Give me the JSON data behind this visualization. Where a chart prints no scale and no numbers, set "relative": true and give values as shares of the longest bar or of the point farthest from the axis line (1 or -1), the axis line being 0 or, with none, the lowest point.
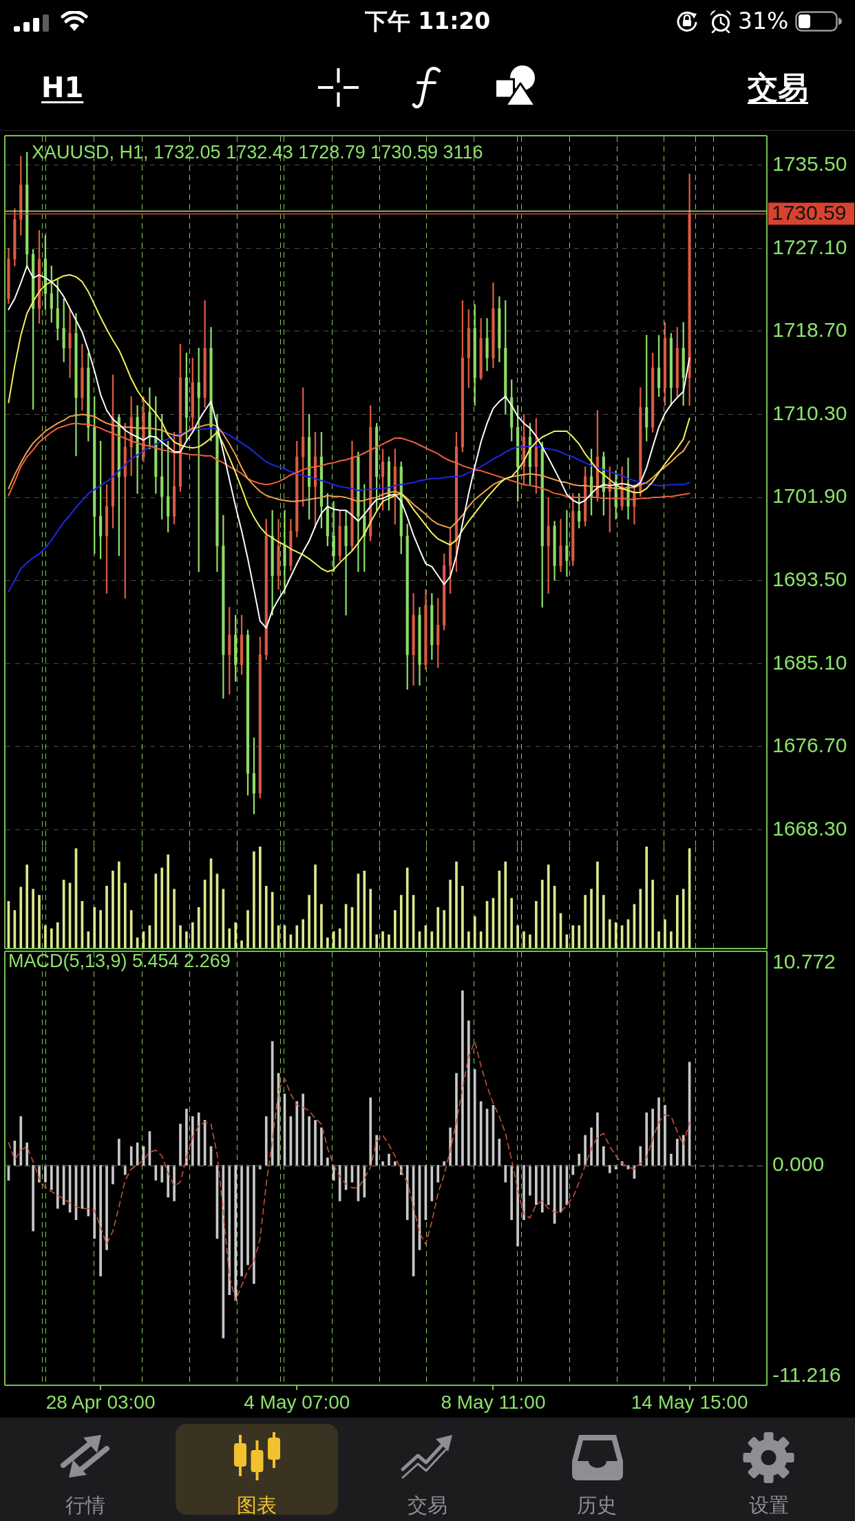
{
  "chart_data": [
    {
      "type": "other",
      "annotations": [
        "下午 11:20",
        "31%",
        "H1",
        "交易"
      ]
    },
    {
      "type": "candlestick",
      "title": "XAUUSD, H1, 1732.05 1732.43 1728.79 1730.59 3116",
      "categories": [
        null,
        null,
        null,
        null,
        null,
        null,
        null,
        null,
        null,
        null,
        null,
        null,
        null,
        null,
        null,
        null,
        null,
        null,
        null,
        null,
        null,
        null,
        null,
        null,
        null,
        null,
        null,
        null,
        null,
        null,
        null,
        null,
        null,
        null,
        null,
        null,
        null,
        null,
        null,
        null,
        null,
        null,
        null,
        null,
        null,
        null,
        null,
        null,
        null,
        null,
        null,
        null,
        null,
        null,
        null,
        null,
        null,
        null,
        null,
        null,
        null,
        null,
        null,
        null,
        null,
        null,
        null,
        null,
        null,
        null,
        null,
        null,
        null,
        null,
        null,
        null,
        null,
        null,
        null,
        null,
        null,
        null,
        null,
        null,
        null,
        null,
        null,
        null,
        null,
        null,
        null,
        null,
        null,
        null,
        null,
        null,
        null,
        null,
        null,
        null,
        null,
        null,
        null,
        null,
        null,
        null,
        null,
        null,
        null,
        null,
        null,
        null,
        null,
        null,
        null,
        null,
        null,
        null,
        null,
        null,
        null,
        null,
        null,
        null
      ],
      "ohlc": [
        [
          1722.0,
          1727.1,
          1721.5,
          1726.0
        ],
        [
          1726.0,
          1731.1,
          1725.3,
          1730.0
        ],
        [
          1730.0,
          1736.4,
          1728.4,
          1733.5
        ],
        [
          1733.5,
          1736.8,
          1725.3,
          1726.5
        ],
        [
          1726.5,
          1727.0,
          1710.8,
          1721.0
        ],
        [
          1721.0,
          1728.9,
          1719.5,
          1726.0
        ],
        [
          1726.0,
          1728.4,
          1720.9,
          1722.5
        ],
        [
          1722.5,
          1725.3,
          1719.6,
          1721.0
        ],
        [
          1721.0,
          1724.0,
          1717.8,
          1719.0
        ],
        [
          1719.0,
          1722.0,
          1715.6,
          1717.0
        ],
        [
          1717.0,
          1721.0,
          1714.0,
          1718.5
        ],
        [
          1718.5,
          1720.5,
          1706.1,
          1712.0
        ],
        [
          1712.0,
          1717.4,
          1710.7,
          1715.0
        ],
        [
          1715.0,
          1716.5,
          1707.6,
          1709.0
        ],
        [
          1709.0,
          1712.1,
          1696.2,
          1700.0
        ],
        [
          1700.0,
          1707.6,
          1695.7,
          1698.0
        ],
        [
          1698.0,
          1703.2,
          1692.2,
          1701.0
        ],
        [
          1701.0,
          1714.3,
          1698.8,
          1710.0
        ],
        [
          1710.0,
          1710.3,
          1696.0,
          1704.0
        ],
        [
          1704.0,
          1709.4,
          1691.7,
          1707.0
        ],
        [
          1707.0,
          1712.1,
          1704.1,
          1710.0
        ],
        [
          1710.0,
          1711.2,
          1702.3,
          1706.0
        ],
        [
          1706.0,
          1712.1,
          1705.5,
          1710.5
        ],
        [
          1710.5,
          1713.0,
          1706.8,
          1708.0
        ],
        [
          1708.0,
          1712.1,
          1702.3,
          1704.0
        ],
        [
          1704.0,
          1710.3,
          1699.7,
          1702.0
        ],
        [
          1702.0,
          1707.6,
          1698.4,
          1700.0
        ],
        [
          1700.0,
          1708.5,
          1699.2,
          1703.0
        ],
        [
          1703.0,
          1717.4,
          1702.5,
          1714.0
        ],
        [
          1714.0,
          1716.5,
          1707.6,
          1710.0
        ],
        [
          1710.0,
          1716.0,
          1708.5,
          1713.5
        ],
        [
          1713.5,
          1717.0,
          1694.4,
          1712.0
        ],
        [
          1712.0,
          1721.8,
          1711.0,
          1717.0
        ],
        [
          1717.0,
          1719.1,
          1707.6,
          1709.0
        ],
        [
          1709.0,
          1710.3,
          1694.4,
          1697.0
        ],
        [
          1697.0,
          1700.1,
          1681.6,
          1686.0
        ],
        [
          1686.0,
          1690.8,
          1682.0,
          1688.0
        ],
        [
          1688.0,
          1690.0,
          1683.3,
          1685.0
        ],
        [
          1685.0,
          1690.0,
          1684.0,
          1688.0
        ],
        [
          1688.0,
          1688.5,
          1671.8,
          1674.0
        ],
        [
          1674.0,
          1677.6,
          1669.9,
          1672.0
        ],
        [
          1672.0,
          1687.8,
          1671.5,
          1686.0
        ],
        [
          1686.0,
          1699.7,
          1685.5,
          1698.0
        ],
        [
          1698.0,
          1700.6,
          1690.0,
          1694.0
        ],
        [
          1694.0,
          1699.7,
          1692.6,
          1697.0
        ],
        [
          1697.0,
          1700.6,
          1692.2,
          1695.0
        ],
        [
          1695.0,
          1699.7,
          1694.5,
          1698.5
        ],
        [
          1698.5,
          1707.6,
          1697.9,
          1706.0
        ],
        [
          1706.0,
          1713.0,
          1701.0,
          1708.0
        ],
        [
          1708.0,
          1710.3,
          1699.7,
          1703.0
        ],
        [
          1703.0,
          1708.5,
          1698.8,
          1706.0
        ],
        [
          1706.0,
          1708.5,
          1698.8,
          1701.0
        ],
        [
          1701.0,
          1702.3,
          1697.0,
          1698.0
        ],
        [
          1698.0,
          1701.5,
          1694.4,
          1696.0
        ],
        [
          1696.0,
          1700.6,
          1695.5,
          1699.0
        ],
        [
          1699.0,
          1700.6,
          1690.0,
          1697.0
        ],
        [
          1697.0,
          1707.6,
          1696.5,
          1706.0
        ],
        [
          1706.0,
          1706.5,
          1694.4,
          1700.0
        ],
        [
          1700.0,
          1703.2,
          1694.4,
          1698.0
        ],
        [
          1698.0,
          1711.2,
          1697.5,
          1709.0
        ],
        [
          1709.0,
          1709.4,
          1700.6,
          1704.0
        ],
        [
          1704.0,
          1706.8,
          1700.6,
          1705.5
        ],
        [
          1705.5,
          1706.0,
          1700.6,
          1702.0
        ],
        [
          1702.0,
          1706.8,
          1699.2,
          1705.0
        ],
        [
          1705.0,
          1705.5,
          1696.2,
          1698.0
        ],
        [
          1698.0,
          1699.2,
          1682.5,
          1686.0
        ],
        [
          1686.0,
          1692.2,
          1682.9,
          1690.0
        ],
        [
          1690.0,
          1690.8,
          1682.9,
          1685.0
        ],
        [
          1685.0,
          1692.6,
          1684.5,
          1691.0
        ],
        [
          1691.0,
          1692.2,
          1685.5,
          1687.0
        ],
        [
          1687.0,
          1691.7,
          1684.7,
          1689.0
        ],
        [
          1689.0,
          1696.2,
          1688.5,
          1695.0
        ],
        [
          1695.0,
          1698.8,
          1692.2,
          1697.5
        ],
        [
          1697.5,
          1708.5,
          1694.4,
          1707.0
        ],
        [
          1707.0,
          1721.8,
          1706.5,
          1716.0
        ],
        [
          1716.0,
          1720.9,
          1713.0,
          1719.0
        ],
        [
          1719.0,
          1721.4,
          1711.2,
          1714.0
        ],
        [
          1714.0,
          1720.0,
          1713.8,
          1718.0
        ],
        [
          1718.0,
          1720.0,
          1714.7,
          1716.0
        ],
        [
          1716.0,
          1723.6,
          1715.0,
          1721.0
        ],
        [
          1721.0,
          1722.2,
          1715.6,
          1717.0
        ],
        [
          1717.0,
          1721.8,
          1710.3,
          1712.0
        ],
        [
          1712.0,
          1713.8,
          1707.6,
          1709.0
        ],
        [
          1709.0,
          1711.2,
          1701.5,
          1705.0
        ],
        [
          1705.0,
          1710.3,
          1703.2,
          1708.0
        ],
        [
          1708.0,
          1709.4,
          1703.2,
          1705.0
        ],
        [
          1705.0,
          1709.9,
          1702.3,
          1707.0
        ],
        [
          1707.0,
          1707.5,
          1690.8,
          1697.0
        ],
        [
          1697.0,
          1701.9,
          1692.2,
          1699.0
        ],
        [
          1699.0,
          1699.5,
          1693.5,
          1695.0
        ],
        [
          1695.0,
          1699.7,
          1694.4,
          1697.0
        ],
        [
          1697.0,
          1700.6,
          1693.9,
          1695.5
        ],
        [
          1695.5,
          1702.3,
          1695.0,
          1700.5
        ],
        [
          1700.5,
          1702.3,
          1698.8,
          1699.5
        ],
        [
          1699.5,
          1705.0,
          1699.0,
          1704.0
        ],
        [
          1704.0,
          1706.8,
          1700.1,
          1702.0
        ],
        [
          1702.0,
          1710.7,
          1701.5,
          1706.0
        ],
        [
          1706.0,
          1706.5,
          1700.1,
          1702.5
        ],
        [
          1702.5,
          1705.0,
          1698.4,
          1703.5
        ],
        [
          1703.5,
          1704.6,
          1699.7,
          1701.0
        ],
        [
          1701.0,
          1705.0,
          1700.6,
          1703.0
        ],
        [
          1703.0,
          1705.9,
          1699.7,
          1701.0
        ],
        [
          1701.0,
          1703.2,
          1699.2,
          1702.5
        ],
        [
          1702.5,
          1713.0,
          1702.0,
          1711.0
        ],
        [
          1711.0,
          1718.3,
          1707.6,
          1709.0
        ],
        [
          1709.0,
          1716.5,
          1708.5,
          1715.0
        ],
        [
          1715.0,
          1718.3,
          1712.1,
          1713.0
        ],
        [
          1713.0,
          1719.6,
          1711.2,
          1718.0
        ],
        [
          1718.0,
          1718.5,
          1711.2,
          1713.0
        ],
        [
          1713.0,
          1719.1,
          1712.1,
          1717.0
        ],
        [
          1717.0,
          1719.6,
          1711.2,
          1714.0
        ],
        [
          1714.0,
          1734.6,
          1711.2,
          1730.59
        ],
        null,
        null,
        null,
        null,
        null,
        null,
        null,
        null,
        null,
        null,
        null,
        null
      ],
      "colors": [
        "#dc5a44",
        "#dc5a44",
        "#dc5a44",
        "#8ddc68",
        "#8ddc68",
        "#dc5a44",
        "#8ddc68",
        "#8ddc68",
        "#8ddc68",
        "#8ddc68",
        "#dc5a44",
        "#8ddc68",
        "#dc5a44",
        "#8ddc68",
        "#8ddc68",
        "#8ddc68",
        "#dc5a44",
        "#dc5a44",
        "#8ddc68",
        "#dc5a44",
        "#dc5a44",
        "#8ddc68",
        "#dc5a44",
        "#8ddc68",
        "#8ddc68",
        "#8ddc68",
        "#8ddc68",
        "#dc5a44",
        "#dc5a44",
        "#8ddc68",
        "#dc5a44",
        "#8ddc68",
        "#dc5a44",
        "#8ddc68",
        "#8ddc68",
        "#8ddc68",
        "#dc5a44",
        "#8ddc68",
        "#dc5a44",
        "#8ddc68",
        "#8ddc68",
        "#dc5a44",
        "#dc5a44",
        "#8ddc68",
        "#dc5a44",
        "#8ddc68",
        "#dc5a44",
        "#dc5a44",
        "#dc5a44",
        "#8ddc68",
        "#dc5a44",
        "#8ddc68",
        "#8ddc68",
        "#8ddc68",
        "#dc5a44",
        "#8ddc68",
        "#dc5a44",
        "#8ddc68",
        "#8ddc68",
        "#dc5a44",
        "#8ddc68",
        "#dc5a44",
        "#8ddc68",
        "#dc5a44",
        "#8ddc68",
        "#8ddc68",
        "#dc5a44",
        "#8ddc68",
        "#dc5a44",
        "#8ddc68",
        "#dc5a44",
        "#dc5a44",
        "#dc5a44",
        "#dc5a44",
        "#dc5a44",
        "#dc5a44",
        "#8ddc68",
        "#dc5a44",
        "#8ddc68",
        "#dc5a44",
        "#8ddc68",
        "#8ddc68",
        "#8ddc68",
        "#8ddc68",
        "#dc5a44",
        "#8ddc68",
        "#dc5a44",
        "#8ddc68",
        "#dc5a44",
        "#8ddc68",
        "#dc5a44",
        "#8ddc68",
        "#dc5a44",
        "#8ddc68",
        "#dc5a44",
        "#8ddc68",
        "#dc5a44",
        "#8ddc68",
        "#dc5a44",
        "#8ddc68",
        "#dc5a44",
        "#8ddc68",
        "#dc5a44",
        "#dc5a44",
        "#8ddc68",
        "#dc5a44",
        "#8ddc68",
        "#dc5a44",
        "#8ddc68",
        "#dc5a44",
        "#8ddc68",
        "#dc5a44",
        null,
        null,
        null,
        null,
        null,
        null,
        null,
        null,
        null,
        null,
        null,
        null
      ],
      "series": [
        {
          "type": "line",
          "color": "#ffffff",
          "values": [
            1720.9,
            1722.0,
            1723.6,
            1725.3,
            1724.1,
            1724.4,
            1724.1,
            1723.7,
            1723.1,
            1722.2,
            1721.0,
            1719.8,
            1718.6,
            1716.8,
            1714.7,
            1712.3,
            1710.7,
            1709.8,
            1709.3,
            1708.7,
            1708.3,
            1708.0,
            1707.7,
            1708.1,
            1708.0,
            1707.5,
            1707.0,
            1706.5,
            1706.5,
            1707.6,
            1708.5,
            1709.7,
            1710.7,
            1711.6,
            1709.2,
            1706.5,
            1703.7,
            1701.0,
            1698.5,
            1695.7,
            1692.6,
            1689.4,
            1688.7,
            1690.5,
            1691.6,
            1692.6,
            1693.9,
            1695.2,
            1696.4,
            1697.5,
            1699.0,
            1700.3,
            1701.0,
            1700.7,
            1700.6,
            1700.6,
            1700.1,
            1699.5,
            1700.2,
            1701.0,
            1701.7,
            1701.8,
            1702.1,
            1702.2,
            1701.5,
            1699.9,
            1698.1,
            1696.6,
            1695.2,
            1694.9,
            1694.0,
            1693.1,
            1693.9,
            1696.0,
            1699.3,
            1702.3,
            1705.0,
            1707.5,
            1709.4,
            1710.9,
            1711.6,
            1712.1,
            1711.2,
            1710.1,
            1709.4,
            1708.9,
            1708.1,
            1707.0,
            1705.9,
            1704.7,
            1703.5,
            1702.2,
            1701.6,
            1701.3,
            1701.6,
            1702.3,
            1702.9,
            1703.2,
            1703.1,
            1703.2,
            1703.3,
            1703.2,
            1703.0,
            1703.4,
            1704.9,
            1707.0,
            1709.0,
            1710.4,
            1711.3,
            1712.0,
            1712.6,
            1716.0,
            null,
            null,
            null,
            null,
            null,
            null,
            null,
            null,
            null,
            null,
            null,
            null
          ]
        },
        {
          "type": "line",
          "color": "#f2f25a",
          "values": [
            1711.5,
            1715.2,
            1718.3,
            1720.5,
            1721.7,
            1722.7,
            1723.4,
            1723.7,
            1724.0,
            1724.3,
            1724.4,
            1724.2,
            1723.7,
            1722.7,
            1721.4,
            1720.1,
            1718.9,
            1717.8,
            1716.8,
            1715.4,
            1713.9,
            1712.7,
            1711.8,
            1711.1,
            1710.4,
            1709.5,
            1708.2,
            1707.5,
            1707.2,
            1707.0,
            1706.9,
            1707.0,
            1707.4,
            1707.9,
            1708.5,
            1707.3,
            1705.9,
            1704.4,
            1702.8,
            1701.1,
            1699.9,
            1698.9,
            1698.2,
            1697.8,
            1697.4,
            1697.1,
            1696.7,
            1696.4,
            1696.1,
            1695.7,
            1695.2,
            1694.7,
            1694.4,
            1694.6,
            1695.3,
            1695.9,
            1696.5,
            1697.3,
            1698.2,
            1699.4,
            1700.5,
            1701.5,
            1701.8,
            1702.1,
            1702.3,
            1701.6,
            1700.7,
            1699.9,
            1699.1,
            1698.3,
            1697.7,
            1697.4,
            1697.1,
            1697.6,
            1698.6,
            1699.5,
            1700.3,
            1701.1,
            1701.9,
            1702.6,
            1703.3,
            1703.8,
            1704.0,
            1704.7,
            1705.6,
            1706.8,
            1707.5,
            1708.0,
            1708.3,
            1708.6,
            1708.6,
            1708.6,
            1708.0,
            1707.3,
            1706.3,
            1705.5,
            1704.7,
            1704.2,
            1703.7,
            1703.2,
            1702.8,
            1702.6,
            1702.4,
            1702.4,
            1702.8,
            1703.5,
            1704.4,
            1705.3,
            1706.1,
            1706.9,
            1707.8,
            1709.9,
            null,
            null,
            null,
            null,
            null,
            null,
            null,
            null,
            null,
            null,
            null,
            null
          ]
        },
        {
          "type": "line",
          "color": "#f0a050",
          "values": [
            1702.8,
            1704.2,
            1705.4,
            1706.5,
            1707.4,
            1708.0,
            1708.6,
            1709.0,
            1709.4,
            1709.7,
            1710.1,
            1710.2,
            1710.3,
            1710.2,
            1710.1,
            1709.7,
            1709.4,
            1709.2,
            1709.1,
            1709.0,
            1709.0,
            1708.9,
            1708.9,
            1708.9,
            1708.8,
            1708.7,
            1708.4,
            1708.2,
            1708.1,
            1708.5,
            1708.9,
            1709.0,
            1709.2,
            1709.3,
            1709.1,
            1708.3,
            1707.3,
            1706.2,
            1704.9,
            1703.8,
            1703.1,
            1702.5,
            1702.1,
            1701.9,
            1701.7,
            1701.6,
            1701.5,
            1701.5,
            1701.6,
            1701.7,
            1701.8,
            1701.9,
            1702.1,
            1702.0,
            1702.0,
            1701.9,
            1701.7,
            1701.5,
            1701.6,
            1701.8,
            1701.9,
            1702.2,
            1702.4,
            1702.5,
            1702.3,
            1701.8,
            1701.2,
            1700.7,
            1700.2,
            1699.6,
            1699.2,
            1699.0,
            1698.8,
            1699.4,
            1700.1,
            1701.0,
            1701.7,
            1702.2,
            1702.7,
            1703.2,
            1703.5,
            1703.8,
            1704.0,
            1704.1,
            1704.2,
            1704.3,
            1704.2,
            1704.1,
            1703.9,
            1703.7,
            1703.5,
            1703.4,
            1703.2,
            1703.1,
            1703.1,
            1703.0,
            1703.0,
            1702.9,
            1702.9,
            1702.8,
            1702.8,
            1702.9,
            1702.9,
            1703.2,
            1703.4,
            1703.9,
            1704.5,
            1705.0,
            1705.5,
            1706.1,
            1706.6,
            1707.6,
            null,
            null,
            null,
            null,
            null,
            null,
            null,
            null,
            null,
            null,
            null,
            null
          ]
        },
        {
          "type": "line",
          "color": "#f0603f",
          "values": [
            1702.1,
            1703.5,
            1705.0,
            1706.0,
            1706.7,
            1707.5,
            1708.0,
            1708.5,
            1708.9,
            1709.1,
            1709.3,
            1709.4,
            1709.3,
            1709.3,
            1709.1,
            1708.9,
            1708.6,
            1708.4,
            1708.1,
            1707.9,
            1707.6,
            1707.4,
            1707.2,
            1707.1,
            1706.9,
            1706.7,
            1706.6,
            1706.4,
            1706.4,
            1706.3,
            1706.2,
            1706.2,
            1706.1,
            1706.1,
            1705.7,
            1705.4,
            1705.0,
            1704.7,
            1704.3,
            1703.8,
            1703.5,
            1703.3,
            1703.2,
            1703.3,
            1703.5,
            1703.8,
            1704.2,
            1704.4,
            1704.7,
            1704.9,
            1705.0,
            1705.1,
            1705.3,
            1705.4,
            1705.6,
            1705.7,
            1705.9,
            1706.1,
            1706.4,
            1706.7,
            1707.0,
            1707.3,
            1707.6,
            1707.9,
            1707.9,
            1707.7,
            1707.5,
            1707.2,
            1706.9,
            1706.6,
            1706.3,
            1705.9,
            1705.6,
            1705.4,
            1705.1,
            1704.9,
            1704.7,
            1704.6,
            1704.4,
            1704.2,
            1704.0,
            1703.8,
            1703.6,
            1703.4,
            1703.2,
            1703.1,
            1703.0,
            1702.8,
            1702.6,
            1702.3,
            1702.2,
            1702.0,
            1701.9,
            1701.9,
            1701.9,
            1701.9,
            1701.9,
            1701.8,
            1701.8,
            1701.8,
            1701.8,
            1701.7,
            1701.7,
            1701.8,
            1701.8,
            1701.9,
            1701.9,
            1702.0,
            1702.0,
            1702.1,
            1702.2,
            1702.3,
            null,
            null,
            null,
            null,
            null,
            null,
            null,
            null,
            null,
            null,
            null,
            null
          ]
        },
        {
          "type": "line",
          "color": "#1e28e6",
          "values": [
            1692.4,
            1693.5,
            1694.7,
            1695.3,
            1695.8,
            1696.2,
            1696.8,
            1697.6,
            1698.5,
            1699.4,
            1700.1,
            1700.9,
            1701.6,
            1702.3,
            1702.7,
            1703.1,
            1703.5,
            1704.0,
            1704.6,
            1705.2,
            1705.8,
            1706.2,
            1706.6,
            1707.0,
            1707.3,
            1707.6,
            1707.8,
            1708.1,
            1708.3,
            1708.5,
            1708.7,
            1708.8,
            1708.8,
            1708.9,
            1708.8,
            1708.5,
            1708.2,
            1707.8,
            1707.4,
            1707.0,
            1706.5,
            1706.0,
            1705.5,
            1705.2,
            1705.0,
            1704.8,
            1704.5,
            1704.3,
            1704.1,
            1704.0,
            1703.8,
            1703.6,
            1703.4,
            1703.2,
            1703.0,
            1702.9,
            1702.8,
            1702.6,
            1702.7,
            1702.7,
            1702.8,
            1702.8,
            1702.9,
            1703.1,
            1703.2,
            1703.3,
            1703.4,
            1703.6,
            1703.7,
            1703.8,
            1703.8,
            1703.9,
            1704.0,
            1704.0,
            1704.1,
            1704.4,
            1704.7,
            1705.0,
            1705.4,
            1705.8,
            1706.1,
            1706.5,
            1706.8,
            1707.0,
            1707.0,
            1707.1,
            1707.1,
            1706.9,
            1706.8,
            1706.7,
            1706.5,
            1706.2,
            1706.0,
            1705.7,
            1705.4,
            1705.1,
            1704.9,
            1704.7,
            1704.5,
            1704.3,
            1704.1,
            1703.8,
            1703.6,
            1703.4,
            1703.3,
            1703.2,
            1703.1,
            1703.1,
            1703.2,
            1703.2,
            1703.2,
            1703.4,
            null,
            null,
            null,
            null,
            null,
            null,
            null,
            null,
            null,
            null,
            null,
            null
          ]
        }
      ],
      "ylim": [
        1666.6,
        1738.4
      ],
      "yticks": [
        {
          "value": 1735.5,
          "label": "1735.50"
        },
        {
          "value": 1727.1,
          "label": "1727.10"
        },
        {
          "value": 1718.7,
          "label": "1718.70"
        },
        {
          "value": 1710.3,
          "label": "1710.30"
        },
        {
          "value": 1701.9,
          "label": "1701.90"
        },
        {
          "value": 1693.5,
          "label": "1693.50"
        },
        {
          "value": 1685.1,
          "label": "1685.10"
        },
        {
          "value": 1676.7,
          "label": "1676.70"
        },
        {
          "value": 1668.3,
          "label": "1668.30"
        }
      ],
      "grid": "y",
      "ref_lines": [
        {
          "axis": "y",
          "value": 1730.9,
          "color": "#b4e882"
        },
        {
          "axis": "y",
          "value": 1730.59,
          "label": "1730.59",
          "color": "#d8432f"
        }
      ]
    },
    {
      "type": "bar",
      "relative": true,
      "color": "#dde88c",
      "categories": [
        null,
        null,
        null,
        null,
        null,
        null,
        null,
        null,
        null,
        null,
        null,
        null,
        null,
        null,
        null,
        null,
        null,
        null,
        null,
        null,
        null,
        null,
        null,
        null,
        null,
        null,
        null,
        null,
        null,
        null,
        null,
        null,
        null,
        null,
        null,
        null,
        null,
        null,
        null,
        null,
        null,
        null,
        null,
        null,
        null,
        null,
        null,
        null,
        null,
        null,
        null,
        null,
        null,
        null,
        null,
        null,
        null,
        null,
        null,
        null,
        null,
        null,
        null,
        null,
        null,
        null,
        null,
        null,
        null,
        null,
        null,
        null,
        null,
        null,
        null,
        null,
        null,
        null,
        null,
        null,
        null,
        null,
        null,
        null,
        null,
        null,
        null,
        null,
        null,
        null,
        null,
        null,
        null,
        null,
        null,
        null,
        null,
        null,
        null,
        null,
        null,
        null,
        null,
        null,
        null,
        null,
        null,
        null,
        null,
        null,
        null,
        null,
        null,
        null,
        null,
        null,
        null,
        null,
        null,
        null,
        null,
        null,
        null,
        null
      ],
      "values": [
        0.46,
        0.37,
        0.6,
        0.82,
        0.58,
        0.52,
        0.22,
        0.19,
        0.25,
        0.67,
        0.64,
        0.98,
        0.46,
        0.16,
        0.4,
        0.37,
        0.61,
        0.76,
        0.85,
        0.64,
        0.37,
        0.1,
        0.16,
        0.22,
        0.73,
        0.79,
        0.92,
        0.58,
        0.22,
        0.16,
        0.25,
        0.4,
        0.67,
        0.88,
        0.73,
        0.58,
        0.19,
        0.25,
        0.07,
        0.37,
        0.95,
        1,
        0.61,
        0.55,
        0.22,
        0.22,
        0.13,
        0.22,
        0.28,
        0.52,
        0.82,
        0.43,
        0.1,
        0.16,
        0.19,
        0.43,
        0.4,
        0.73,
        0.76,
        0.58,
        0.13,
        0.16,
        0.13,
        0.37,
        0.52,
        0.79,
        0.52,
        0.16,
        0.22,
        0.16,
        0.4,
        0.37,
        0.67,
        0.85,
        0.61,
        0.16,
        0.31,
        0.16,
        0.46,
        0.49,
        0.76,
        0.85,
        0.49,
        0.22,
        0.16,
        0.13,
        0.46,
        0.67,
        0.82,
        0.61,
        0.34,
        0.13,
        0.22,
        0.22,
        0.52,
        0.58,
        0.85,
        0.52,
        0.28,
        0.25,
        0.22,
        0.28,
        0.43,
        0.58,
        1,
        0.67,
        0.16,
        0.28,
        0.16,
        0.52,
        0.58,
        0.98,
        null,
        null,
        null,
        null,
        null,
        null,
        null,
        null,
        null,
        null,
        null,
        null
      ]
    },
    {
      "type": "bar",
      "title": "MACD(5,13,9) 5.454 2.269",
      "categories": [
        null,
        null,
        null,
        null,
        null,
        null,
        null,
        null,
        null,
        null,
        null,
        null,
        null,
        null,
        null,
        "28 Apr 03:00",
        null,
        null,
        null,
        null,
        null,
        null,
        null,
        null,
        null,
        null,
        null,
        null,
        null,
        null,
        null,
        null,
        null,
        null,
        null,
        null,
        null,
        null,
        null,
        null,
        null,
        null,
        null,
        null,
        null,
        null,
        null,
        "4 May 07:00",
        null,
        null,
        null,
        null,
        null,
        null,
        null,
        null,
        null,
        null,
        null,
        null,
        null,
        null,
        null,
        null,
        null,
        null,
        null,
        null,
        null,
        null,
        null,
        null,
        null,
        null,
        null,
        null,
        null,
        null,
        null,
        "8 May 11:00",
        null,
        null,
        null,
        null,
        null,
        null,
        null,
        null,
        null,
        null,
        null,
        null,
        null,
        null,
        null,
        null,
        null,
        null,
        null,
        null,
        null,
        null,
        null,
        null,
        null,
        null,
        null,
        null,
        null,
        null,
        null,
        "14 May 15:00",
        null,
        null,
        null,
        null,
        null,
        null,
        null,
        null,
        null,
        null,
        null,
        null
      ],
      "series": [
        {
          "type": "bar",
          "color": "#c8c8c8",
          "values": [
            -0.8,
            1.3,
            2.6,
            1.2,
            -3.5,
            -0.9,
            -0.9,
            -1.3,
            -2.3,
            -2.1,
            -2.5,
            -2.9,
            -2.3,
            -2.7,
            -3.9,
            -5.9,
            -4.5,
            -1.0,
            1.4,
            -0.5,
            1.0,
            1.2,
            1.0,
            1.8,
            -0.8,
            -0.9,
            -1.7,
            -1.9,
            2.2,
            3.0,
            2.6,
            2.8,
            2.4,
            1.0,
            -3.9,
            -9.2,
            -6.9,
            -7.2,
            -5.9,
            -5.3,
            -6.3,
            -0.2,
            2.6,
            6.6,
            4.9,
            3.8,
            2.6,
            3.4,
            3.8,
            2.6,
            2.4,
            2.0,
            0.4,
            -0.8,
            -1.9,
            -1.3,
            -0.9,
            -1.9,
            -1.7,
            3.6,
            1.6,
            0.2,
            0.6,
            0.2,
            -0.5,
            -2.9,
            -5.9,
            -4.5,
            -2.9,
            -1.9,
            -0.9,
            0.2,
            2.0,
            4.9,
            9.3,
            7.7,
            5.1,
            3.4,
            3.0,
            3.2,
            1.4,
            -0.9,
            -2.9,
            -4.3,
            -2.9,
            -1.6,
            -2.1,
            -2.5,
            -2.1,
            -3.1,
            -2.5,
            -2.1,
            -0.5,
            0.6,
            1.6,
            2.0,
            2.8,
            1.0,
            -0.4,
            -0.2,
            0.2,
            -0.2,
            -0.7,
            1.0,
            2.8,
            3.0,
            3.6,
            3.2,
            0.6,
            1.4,
            1.6,
            5.5,
            null,
            null,
            null,
            null,
            null,
            null,
            null,
            null,
            null,
            null,
            null,
            null
          ]
        },
        {
          "type": "line",
          "color": "#c8503c",
          "line_style": "dashed",
          "values": [
            1.2,
            0.3,
            0.8,
            1.0,
            0.2,
            -0.7,
            -1.2,
            -1.4,
            -1.6,
            -1.8,
            -2.0,
            -2.2,
            -2.3,
            -2.3,
            -2.4,
            -3.3,
            -4.2,
            -3.5,
            -2.2,
            -0.8,
            -0.2,
            0,
            0.3,
            0.7,
            0.8,
            0.5,
            -0.4,
            -1.1,
            -0.9,
            0.4,
            1.5,
            2.1,
            2.3,
            2.2,
            0.6,
            -2.5,
            -5.9,
            -7.2,
            -6.4,
            -5.6,
            -5.1,
            -3.9,
            -1.0,
            1.3,
            4.0,
            4.6,
            3.8,
            3.2,
            3.1,
            2.9,
            2.5,
            2.2,
            0.9,
            0,
            -0.6,
            -1.0,
            -1.2,
            -1.2,
            -0.7,
            -0.1,
            1.3,
            1.6,
            1.1,
            0.5,
            -0.3,
            -0.9,
            -2.2,
            -3.6,
            -4.2,
            -3.0,
            -1.5,
            -0.5,
            0.8,
            2.3,
            4.1,
            5.8,
            6.6,
            5.3,
            4.2,
            3.3,
            2.6,
            1.7,
            0.3,
            -1.3,
            -2.6,
            -2.8,
            -2.1,
            -1.9,
            -2.3,
            -2.5,
            -2.5,
            -2.1,
            -1.7,
            -0.9,
            0,
            0.9,
            1.5,
            1.7,
            1.0,
            0.5,
            0.1,
            -0.1,
            -0.2,
            0.1,
            0.4,
            1.4,
            2.3,
            2.7,
            2.6,
            1.8,
            1.1,
            2.3,
            null,
            null,
            null,
            null,
            null,
            null,
            null,
            null,
            null,
            null,
            null,
            null
          ]
        }
      ],
      "ylim": [
        -11.68,
        11.36
      ],
      "yticks": [
        10.772,
        {
          "value": 0,
          "label": "0.000"
        },
        -11.216
      ],
      "ref_lines": [
        {
          "axis": "y",
          "value": 0,
          "color": "#5a5a5a",
          "line_style": "dashed"
        }
      ]
    },
    {
      "type": "other",
      "annotations": [
        "行情",
        "图表",
        "交易",
        "历史",
        "设置"
      ]
    }
  ]
}
